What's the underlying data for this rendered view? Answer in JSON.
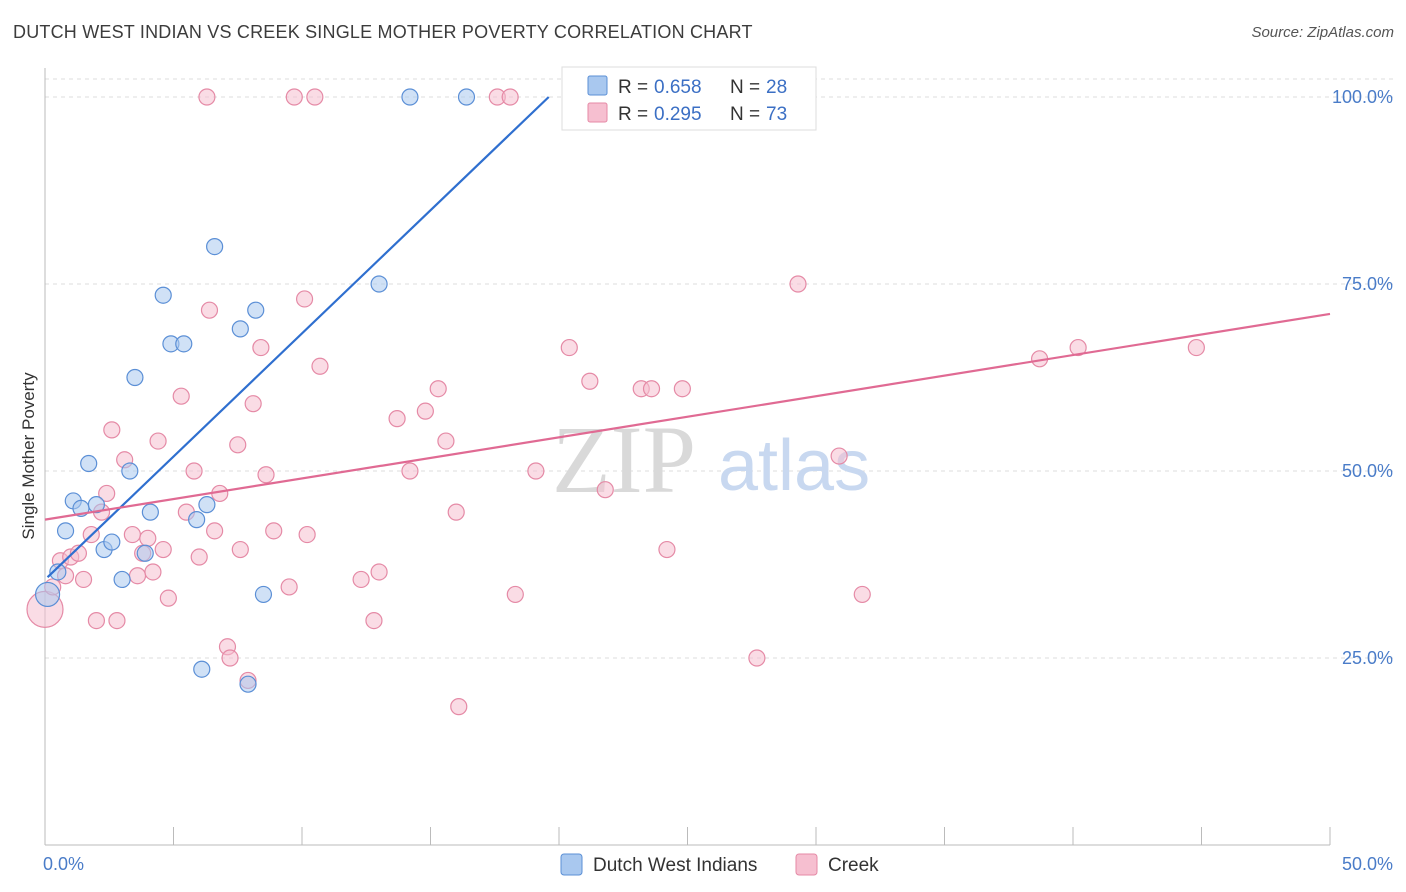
{
  "header": {
    "title": "DUTCH WEST INDIAN VS CREEK SINGLE MOTHER POVERTY CORRELATION CHART",
    "source": "Source: ZipAtlas.com"
  },
  "watermark": {
    "part1": "ZIP",
    "part2": "atlas"
  },
  "colors": {
    "blue_fill": "#a9c8ef",
    "blue_stroke": "#5b8fd6",
    "blue_line": "#2f6fcf",
    "pink_fill": "#f6bfd0",
    "pink_stroke": "#e58aa6",
    "pink_line": "#e06a93",
    "grid": "#dddddd",
    "axis_label": "#4a7cc8"
  },
  "legend": {
    "series": [
      {
        "r_label": "R =",
        "r_value": "0.658",
        "n_label": "N =",
        "n_value": "28",
        "color_key": "blue"
      },
      {
        "r_label": "R =",
        "r_value": "0.295",
        "n_label": "N =",
        "n_value": "73",
        "color_key": "pink"
      }
    ]
  },
  "bottom_legend": [
    {
      "label": "Dutch West Indians",
      "color_key": "blue"
    },
    {
      "label": "Creek",
      "color_key": "pink"
    }
  ],
  "chart_data": {
    "type": "scatter",
    "title": "DUTCH WEST INDIAN VS CREEK SINGLE MOTHER POVERTY CORRELATION CHART",
    "xlabel": "",
    "ylabel": "Single Mother Poverty",
    "xlim": [
      0,
      50
    ],
    "ylim": [
      0,
      102
    ],
    "x_ticks": [
      0,
      5,
      10,
      15,
      20,
      25,
      30,
      35,
      40,
      45,
      50
    ],
    "x_tick_labels": [
      {
        "value": 0,
        "label": "0.0%"
      },
      {
        "value": 50,
        "label": "50.0%"
      }
    ],
    "y_ticks": [
      25,
      50,
      75,
      100
    ],
    "y_tick_labels": [
      "25.0%",
      "50.0%",
      "75.0%",
      "100.0%"
    ],
    "grid": true,
    "legend_position": "top-center",
    "series": [
      {
        "name": "Dutch West Indians",
        "color_key": "blue",
        "points": [
          [
            0.1,
            33.5
          ],
          [
            0.5,
            36.5
          ],
          [
            0.8,
            42
          ],
          [
            1.1,
            46
          ],
          [
            1.4,
            45
          ],
          [
            1.7,
            51
          ],
          [
            2.0,
            45.5
          ],
          [
            2.3,
            39.5
          ],
          [
            2.6,
            40.5
          ],
          [
            3.0,
            35.5
          ],
          [
            3.3,
            50
          ],
          [
            3.5,
            62.5
          ],
          [
            3.9,
            39
          ],
          [
            4.1,
            44.5
          ],
          [
            4.6,
            73.5
          ],
          [
            4.9,
            67
          ],
          [
            5.4,
            67
          ],
          [
            5.9,
            43.5
          ],
          [
            6.1,
            23.5
          ],
          [
            6.3,
            45.5
          ],
          [
            6.6,
            80
          ],
          [
            7.6,
            69
          ],
          [
            7.9,
            21.5
          ],
          [
            8.2,
            71.5
          ],
          [
            8.5,
            33.5
          ],
          [
            13.0,
            75
          ],
          [
            14.2,
            100
          ],
          [
            16.4,
            100
          ]
        ],
        "trendline": {
          "x": [
            0.1,
            19.6
          ],
          "y": [
            35.8,
            100
          ]
        }
      },
      {
        "name": "Creek",
        "color_key": "pink",
        "points": [
          [
            0.0,
            31.5
          ],
          [
            0.3,
            34.5
          ],
          [
            0.6,
            38
          ],
          [
            0.8,
            36
          ],
          [
            1.0,
            38.5
          ],
          [
            1.3,
            39
          ],
          [
            1.5,
            35.5
          ],
          [
            1.8,
            41.5
          ],
          [
            2.0,
            30
          ],
          [
            2.2,
            44.5
          ],
          [
            2.4,
            47
          ],
          [
            2.6,
            55.5
          ],
          [
            2.8,
            30
          ],
          [
            3.1,
            51.5
          ],
          [
            3.4,
            41.5
          ],
          [
            3.6,
            36
          ],
          [
            3.8,
            39
          ],
          [
            4.0,
            41
          ],
          [
            4.2,
            36.5
          ],
          [
            4.4,
            54
          ],
          [
            4.6,
            39.5
          ],
          [
            4.8,
            33
          ],
          [
            5.3,
            60
          ],
          [
            5.5,
            44.5
          ],
          [
            5.8,
            50
          ],
          [
            6.0,
            38.5
          ],
          [
            6.3,
            100
          ],
          [
            6.4,
            71.5
          ],
          [
            6.6,
            42
          ],
          [
            6.8,
            47
          ],
          [
            7.1,
            26.5
          ],
          [
            7.2,
            25
          ],
          [
            7.5,
            53.5
          ],
          [
            7.6,
            39.5
          ],
          [
            7.9,
            22
          ],
          [
            8.1,
            59
          ],
          [
            8.4,
            66.5
          ],
          [
            8.6,
            49.5
          ],
          [
            8.9,
            42
          ],
          [
            9.5,
            34.5
          ],
          [
            9.7,
            100
          ],
          [
            10.1,
            73
          ],
          [
            10.5,
            100
          ],
          [
            10.2,
            41.5
          ],
          [
            10.7,
            64
          ],
          [
            12.3,
            35.5
          ],
          [
            12.8,
            30
          ],
          [
            13.0,
            36.5
          ],
          [
            13.7,
            57
          ],
          [
            14.2,
            50
          ],
          [
            14.8,
            58
          ],
          [
            15.3,
            61
          ],
          [
            15.6,
            54
          ],
          [
            16.0,
            44.5
          ],
          [
            16.1,
            18.5
          ],
          [
            17.6,
            100
          ],
          [
            18.1,
            100
          ],
          [
            18.3,
            33.5
          ],
          [
            19.1,
            50
          ],
          [
            20.4,
            66.5
          ],
          [
            21.2,
            62
          ],
          [
            21.8,
            47.5
          ],
          [
            23.2,
            61
          ],
          [
            23.6,
            61
          ],
          [
            24.2,
            39.5
          ],
          [
            24.8,
            61
          ],
          [
            27.7,
            25
          ],
          [
            29.3,
            75
          ],
          [
            30.9,
            52
          ],
          [
            31.8,
            33.5
          ],
          [
            38.7,
            65
          ],
          [
            40.2,
            66.5
          ],
          [
            44.8,
            66.5
          ]
        ],
        "trendline": {
          "x": [
            0,
            50
          ],
          "y": [
            43.5,
            71
          ]
        }
      }
    ]
  }
}
